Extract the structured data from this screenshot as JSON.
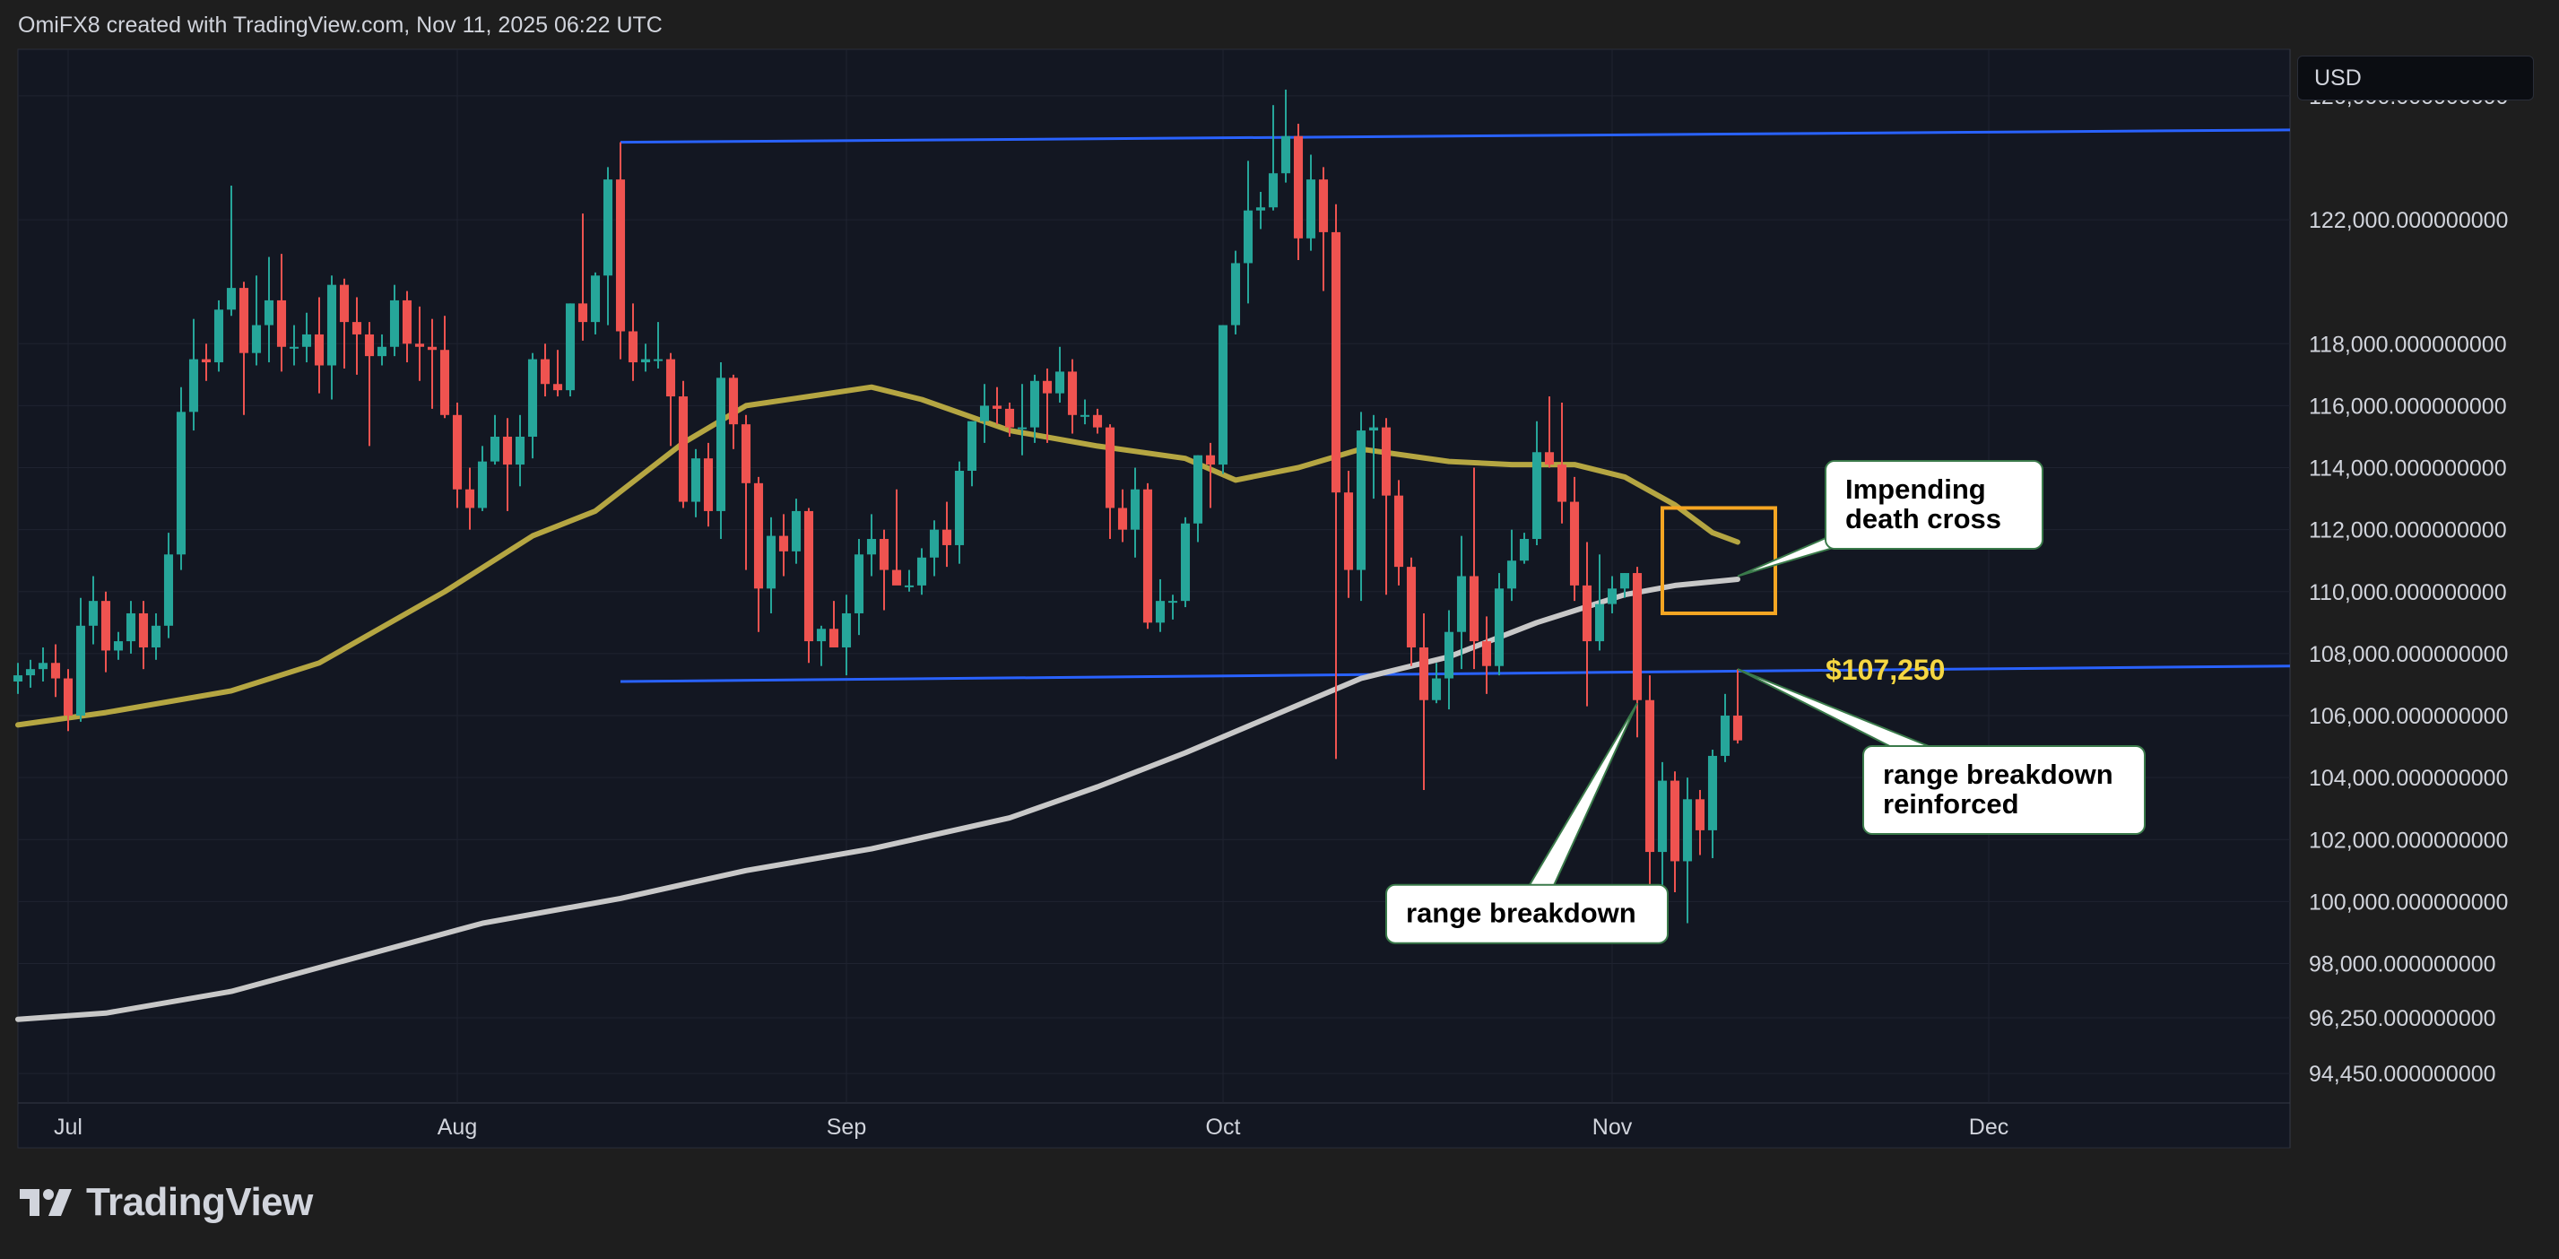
{
  "header": {
    "attribution": "OmiFX8 created with TradingView.com, Nov 11, 2025 06:22 UTC"
  },
  "brand": {
    "name": "TradingView"
  },
  "currency": {
    "label": "USD"
  },
  "colors": {
    "background": "#131722",
    "up": "#26a69a",
    "down": "#ef5350",
    "ma_short": "#b5a642",
    "ma_long": "#c8c8c8",
    "range_lines": "#2962ff",
    "highlight_box": "#f5a623",
    "price_label": "#f5d742"
  },
  "chart_data": {
    "type": "candlestick",
    "title": "",
    "x_labels": [
      "Jul",
      "Aug",
      "Sep",
      "Oct",
      "Nov",
      "Dec"
    ],
    "x_label_dates": [
      "2025-07-01",
      "2025-08-01",
      "2025-09-01",
      "2025-10-01",
      "2025-11-01",
      "2025-12-01"
    ],
    "x_range": [
      "2025-06-27",
      "2025-12-25"
    ],
    "y_range": [
      93500,
      127500
    ],
    "y_tick_labels": [
      "126,000.000000000",
      "122,000.000000000",
      "118,000.000000000",
      "116,000.000000000",
      "114,000.000000000",
      "112,000.000000000",
      "110,000.000000000",
      "108,000.000000000",
      "106,000.000000000",
      "104,000.000000000",
      "102,000.000000000",
      "100,000.000000000",
      "98,000.000000000",
      "96,250.000000000",
      "94,450.000000000"
    ],
    "y_tick_values": [
      126000,
      122000,
      118000,
      116000,
      114000,
      112000,
      110000,
      108000,
      106000,
      104000,
      102000,
      100000,
      98000,
      96250,
      94450
    ],
    "grid": true,
    "candles": [
      [
        "2025-06-27",
        107100,
        107700,
        106700,
        107300
      ],
      [
        "2025-06-28",
        107300,
        107800,
        106900,
        107500
      ],
      [
        "2025-06-29",
        107500,
        108200,
        107100,
        107700
      ],
      [
        "2025-06-30",
        107700,
        108300,
        106600,
        107200
      ],
      [
        "2025-07-01",
        107200,
        107500,
        105500,
        106000
      ],
      [
        "2025-07-02",
        106000,
        109800,
        105800,
        108900
      ],
      [
        "2025-07-03",
        108900,
        110500,
        108300,
        109700
      ],
      [
        "2025-07-04",
        109700,
        110000,
        107400,
        108100
      ],
      [
        "2025-07-05",
        108100,
        108700,
        107800,
        108400
      ],
      [
        "2025-07-06",
        108400,
        109700,
        108000,
        109300
      ],
      [
        "2025-07-07",
        109300,
        109700,
        107500,
        108200
      ],
      [
        "2025-07-08",
        108200,
        109300,
        107800,
        108900
      ],
      [
        "2025-07-09",
        108900,
        111900,
        108500,
        111200
      ],
      [
        "2025-07-10",
        111200,
        116600,
        110700,
        115800
      ],
      [
        "2025-07-11",
        115800,
        118800,
        115200,
        117500
      ],
      [
        "2025-07-12",
        117500,
        118000,
        116800,
        117400
      ],
      [
        "2025-07-13",
        117400,
        119400,
        117100,
        119100
      ],
      [
        "2025-07-14",
        119100,
        123100,
        118900,
        119800
      ],
      [
        "2025-07-15",
        119800,
        120000,
        115700,
        117700
      ],
      [
        "2025-07-16",
        117700,
        120200,
        117300,
        118600
      ],
      [
        "2025-07-17",
        118600,
        120800,
        117400,
        119400
      ],
      [
        "2025-07-18",
        119400,
        120900,
        117100,
        117900
      ],
      [
        "2025-07-19",
        117900,
        118600,
        117300,
        117900
      ],
      [
        "2025-07-20",
        117900,
        119000,
        117400,
        118300
      ],
      [
        "2025-07-21",
        118300,
        119500,
        116400,
        117300
      ],
      [
        "2025-07-22",
        117300,
        120200,
        116200,
        119900
      ],
      [
        "2025-07-23",
        119900,
        120100,
        117200,
        118700
      ],
      [
        "2025-07-24",
        118700,
        119500,
        117000,
        118300
      ],
      [
        "2025-07-25",
        118300,
        118700,
        114700,
        117600
      ],
      [
        "2025-07-26",
        117600,
        118300,
        117300,
        117900
      ],
      [
        "2025-07-27",
        117900,
        119900,
        117600,
        119400
      ],
      [
        "2025-07-28",
        119400,
        119700,
        117400,
        118000
      ],
      [
        "2025-07-29",
        118000,
        119200,
        116800,
        117900
      ],
      [
        "2025-07-30",
        117900,
        118800,
        115900,
        117800
      ],
      [
        "2025-07-31",
        117800,
        118900,
        115600,
        115700
      ],
      [
        "2025-08-01",
        115700,
        116100,
        112700,
        113300
      ],
      [
        "2025-08-02",
        113300,
        114000,
        112000,
        112700
      ],
      [
        "2025-08-03",
        112700,
        114700,
        112600,
        114200
      ],
      [
        "2025-08-04",
        114200,
        115700,
        114100,
        115000
      ],
      [
        "2025-08-05",
        115000,
        115600,
        112600,
        114100
      ],
      [
        "2025-08-06",
        114100,
        115700,
        113400,
        115000
      ],
      [
        "2025-08-07",
        115000,
        117700,
        114300,
        117500
      ],
      [
        "2025-08-08",
        117500,
        118000,
        116300,
        116700
      ],
      [
        "2025-08-09",
        116700,
        117800,
        116300,
        116500
      ],
      [
        "2025-08-10",
        116500,
        119300,
        116300,
        119300
      ],
      [
        "2025-08-11",
        119300,
        122200,
        118100,
        118700
      ],
      [
        "2025-08-12",
        118700,
        120300,
        118300,
        120200
      ],
      [
        "2025-08-13",
        120200,
        123700,
        118600,
        123300
      ],
      [
        "2025-08-14",
        123300,
        124500,
        117500,
        118400
      ],
      [
        "2025-08-15",
        118400,
        119300,
        116800,
        117400
      ],
      [
        "2025-08-16",
        117400,
        118000,
        117100,
        117500
      ],
      [
        "2025-08-17",
        117500,
        118700,
        117200,
        117500
      ],
      [
        "2025-08-18",
        117500,
        117700,
        114700,
        116300
      ],
      [
        "2025-08-19",
        116300,
        116800,
        112700,
        112900
      ],
      [
        "2025-08-20",
        112900,
        114600,
        112400,
        114300
      ],
      [
        "2025-08-21",
        114300,
        114800,
        112100,
        112600
      ],
      [
        "2025-08-22",
        112600,
        117400,
        111700,
        116900
      ],
      [
        "2025-08-23",
        116900,
        117000,
        114600,
        115400
      ],
      [
        "2025-08-24",
        115400,
        115700,
        110700,
        113500
      ],
      [
        "2025-08-25",
        113500,
        113700,
        108700,
        110100
      ],
      [
        "2025-08-26",
        110100,
        112400,
        109300,
        111800
      ],
      [
        "2025-08-27",
        111800,
        112500,
        110500,
        111300
      ],
      [
        "2025-08-28",
        111300,
        113000,
        110900,
        112600
      ],
      [
        "2025-08-29",
        112600,
        112700,
        107700,
        108400
      ],
      [
        "2025-08-30",
        108400,
        108900,
        107600,
        108800
      ],
      [
        "2025-08-31",
        108800,
        109700,
        108200,
        108200
      ],
      [
        "2025-09-01",
        108200,
        109900,
        107300,
        109300
      ],
      [
        "2025-09-02",
        109300,
        111700,
        108600,
        111200
      ],
      [
        "2025-09-03",
        111200,
        112500,
        110500,
        111700
      ],
      [
        "2025-09-04",
        111700,
        112000,
        109400,
        110700
      ],
      [
        "2025-09-05",
        110700,
        113300,
        110300,
        110200
      ],
      [
        "2025-09-06",
        110200,
        110700,
        110000,
        110200
      ],
      [
        "2025-09-07",
        110200,
        111400,
        109900,
        111100
      ],
      [
        "2025-09-08",
        111100,
        112300,
        110500,
        112000
      ],
      [
        "2025-09-09",
        112000,
        112900,
        110800,
        111500
      ],
      [
        "2025-09-10",
        111500,
        114200,
        110900,
        113900
      ],
      [
        "2025-09-11",
        113900,
        115300,
        113400,
        115500
      ],
      [
        "2025-09-12",
        115500,
        116700,
        114800,
        116000
      ],
      [
        "2025-09-13",
        116000,
        116600,
        115400,
        115900
      ],
      [
        "2025-09-14",
        115900,
        116100,
        115000,
        115300
      ],
      [
        "2025-09-15",
        115300,
        116700,
        114400,
        115300
      ],
      [
        "2025-09-16",
        115300,
        117000,
        114800,
        116800
      ],
      [
        "2025-09-17",
        116800,
        117200,
        114800,
        116400
      ],
      [
        "2025-09-18",
        116400,
        117900,
        116100,
        117100
      ],
      [
        "2025-09-19",
        117100,
        117500,
        115100,
        115700
      ],
      [
        "2025-09-20",
        115700,
        116200,
        115400,
        115700
      ],
      [
        "2025-09-21",
        115700,
        115900,
        115100,
        115300
      ],
      [
        "2025-09-22",
        115300,
        115400,
        111700,
        112700
      ],
      [
        "2025-09-23",
        112700,
        113300,
        111600,
        112000
      ],
      [
        "2025-09-24",
        112000,
        114000,
        111100,
        113300
      ],
      [
        "2025-09-25",
        113300,
        113500,
        108800,
        109000
      ],
      [
        "2025-09-26",
        109000,
        110400,
        108700,
        109700
      ],
      [
        "2025-09-27",
        109700,
        109900,
        109100,
        109700
      ],
      [
        "2025-09-28",
        109700,
        112400,
        109500,
        112200
      ],
      [
        "2025-09-29",
        112200,
        114400,
        111600,
        114400
      ],
      [
        "2025-09-30",
        114400,
        114800,
        112700,
        114100
      ],
      [
        "2025-10-01",
        114100,
        118600,
        113800,
        118600
      ],
      [
        "2025-10-02",
        118600,
        121000,
        118300,
        120600
      ],
      [
        "2025-10-03",
        120600,
        123900,
        119300,
        122300
      ],
      [
        "2025-10-04",
        122300,
        122900,
        121700,
        122400
      ],
      [
        "2025-10-05",
        122400,
        125700,
        122300,
        123500
      ],
      [
        "2025-10-06",
        123500,
        126200,
        123200,
        124700
      ],
      [
        "2025-10-07",
        124700,
        125100,
        120700,
        121400
      ],
      [
        "2025-10-08",
        121400,
        124100,
        121000,
        123300
      ],
      [
        "2025-10-09",
        123300,
        123700,
        119700,
        121600
      ],
      [
        "2025-10-10",
        121600,
        122500,
        104600,
        113200
      ],
      [
        "2025-10-11",
        113200,
        113900,
        109800,
        110700
      ],
      [
        "2025-10-12",
        110700,
        115800,
        109700,
        115200
      ],
      [
        "2025-10-13",
        115200,
        115700,
        113000,
        115300
      ],
      [
        "2025-10-14",
        115300,
        115600,
        109900,
        113100
      ],
      [
        "2025-10-15",
        113100,
        113600,
        110200,
        110800
      ],
      [
        "2025-10-16",
        110800,
        111100,
        107600,
        108200
      ],
      [
        "2025-10-17",
        108200,
        109300,
        103600,
        106500
      ],
      [
        "2025-10-18",
        106500,
        107700,
        106400,
        107200
      ],
      [
        "2025-10-19",
        107200,
        109400,
        106200,
        108700
      ],
      [
        "2025-10-20",
        108700,
        111800,
        107500,
        110500
      ],
      [
        "2025-10-21",
        110500,
        114000,
        107500,
        108400
      ],
      [
        "2025-10-22",
        108400,
        109200,
        106700,
        107600
      ],
      [
        "2025-10-23",
        107600,
        110600,
        107300,
        110100
      ],
      [
        "2025-10-24",
        110100,
        112000,
        109700,
        111000
      ],
      [
        "2025-10-25",
        111000,
        111900,
        110900,
        111700
      ],
      [
        "2025-10-26",
        111700,
        115500,
        111500,
        114500
      ],
      [
        "2025-10-27",
        114500,
        116300,
        114000,
        114100
      ],
      [
        "2025-10-28",
        114100,
        116100,
        112200,
        112900
      ],
      [
        "2025-10-29",
        112900,
        113700,
        109700,
        110200
      ],
      [
        "2025-10-30",
        110200,
        111600,
        106300,
        108400
      ],
      [
        "2025-10-31",
        108400,
        111200,
        108100,
        109600
      ],
      [
        "2025-11-01",
        109600,
        110500,
        109300,
        110100
      ],
      [
        "2025-11-02",
        110100,
        110600,
        109800,
        110600
      ],
      [
        "2025-11-03",
        110600,
        110800,
        105300,
        106500
      ],
      [
        "2025-11-04",
        106500,
        107300,
        98900,
        101600
      ],
      [
        "2025-11-05",
        101600,
        104500,
        98900,
        103900
      ],
      [
        "2025-11-06",
        103900,
        104200,
        100300,
        101300
      ],
      [
        "2025-11-07",
        101300,
        104000,
        99300,
        103300
      ],
      [
        "2025-11-08",
        103300,
        103600,
        101500,
        102300
      ],
      [
        "2025-11-09",
        102300,
        104900,
        101400,
        104700
      ],
      [
        "2025-11-10",
        104700,
        106700,
        104500,
        106000
      ],
      [
        "2025-11-11",
        106000,
        107500,
        105100,
        105200
      ]
    ],
    "ma_short_points": [
      [
        "2025-06-27",
        105700
      ],
      [
        "2025-07-04",
        106100
      ],
      [
        "2025-07-14",
        106800
      ],
      [
        "2025-07-21",
        107700
      ],
      [
        "2025-07-31",
        110000
      ],
      [
        "2025-08-07",
        111800
      ],
      [
        "2025-08-12",
        112600
      ],
      [
        "2025-08-19",
        114800
      ],
      [
        "2025-08-24",
        116000
      ],
      [
        "2025-08-29",
        116300
      ],
      [
        "2025-09-03",
        116600
      ],
      [
        "2025-09-07",
        116200
      ],
      [
        "2025-09-14",
        115200
      ],
      [
        "2025-09-21",
        114700
      ],
      [
        "2025-09-28",
        114300
      ],
      [
        "2025-10-02",
        113600
      ],
      [
        "2025-10-07",
        114000
      ],
      [
        "2025-10-12",
        114600
      ],
      [
        "2025-10-19",
        114200
      ],
      [
        "2025-10-24",
        114100
      ],
      [
        "2025-10-29",
        114100
      ],
      [
        "2025-11-02",
        113700
      ],
      [
        "2025-11-06",
        112800
      ],
      [
        "2025-11-09",
        111900
      ],
      [
        "2025-11-11",
        111600
      ]
    ],
    "ma_long_points": [
      [
        "2025-06-27",
        96200
      ],
      [
        "2025-07-04",
        96400
      ],
      [
        "2025-07-14",
        97100
      ],
      [
        "2025-07-24",
        98200
      ],
      [
        "2025-08-03",
        99300
      ],
      [
        "2025-08-14",
        100100
      ],
      [
        "2025-08-24",
        101000
      ],
      [
        "2025-09-03",
        101700
      ],
      [
        "2025-09-14",
        102700
      ],
      [
        "2025-09-21",
        103700
      ],
      [
        "2025-09-28",
        104800
      ],
      [
        "2025-10-05",
        106000
      ],
      [
        "2025-10-12",
        107200
      ],
      [
        "2025-10-19",
        107900
      ],
      [
        "2025-10-26",
        109000
      ],
      [
        "2025-11-02",
        109900
      ],
      [
        "2025-11-06",
        110200
      ],
      [
        "2025-11-11",
        110400
      ]
    ],
    "range_top_line": [
      [
        "2025-08-14",
        124500
      ],
      [
        "2025-12-25",
        124900
      ]
    ],
    "range_bottom_line": [
      [
        "2025-08-14",
        107100
      ],
      [
        "2025-12-25",
        107600
      ]
    ],
    "highlight_box": {
      "x": [
        "2025-11-05",
        "2025-11-14"
      ],
      "y": [
        109300,
        112700
      ]
    },
    "price_label": {
      "text": "$107,250",
      "date": "2025-11-18",
      "price": 107500
    },
    "annotations": [
      {
        "text_lines": [
          "Impending",
          "death cross"
        ],
        "box_date": "2025-11-18",
        "box_price": 112800,
        "pointer_date": "2025-11-11",
        "pointer_price": 110500
      },
      {
        "text_lines": [
          "range breakdown"
        ],
        "box_date": "2025-10-14",
        "box_price": 99600,
        "pointer_date": "2025-11-03",
        "pointer_price": 106400
      },
      {
        "text_lines": [
          "range breakdown",
          "reinforced"
        ],
        "box_date": "2025-11-21",
        "box_price": 103600,
        "pointer_date": "2025-11-11",
        "pointer_price": 107500
      }
    ]
  }
}
